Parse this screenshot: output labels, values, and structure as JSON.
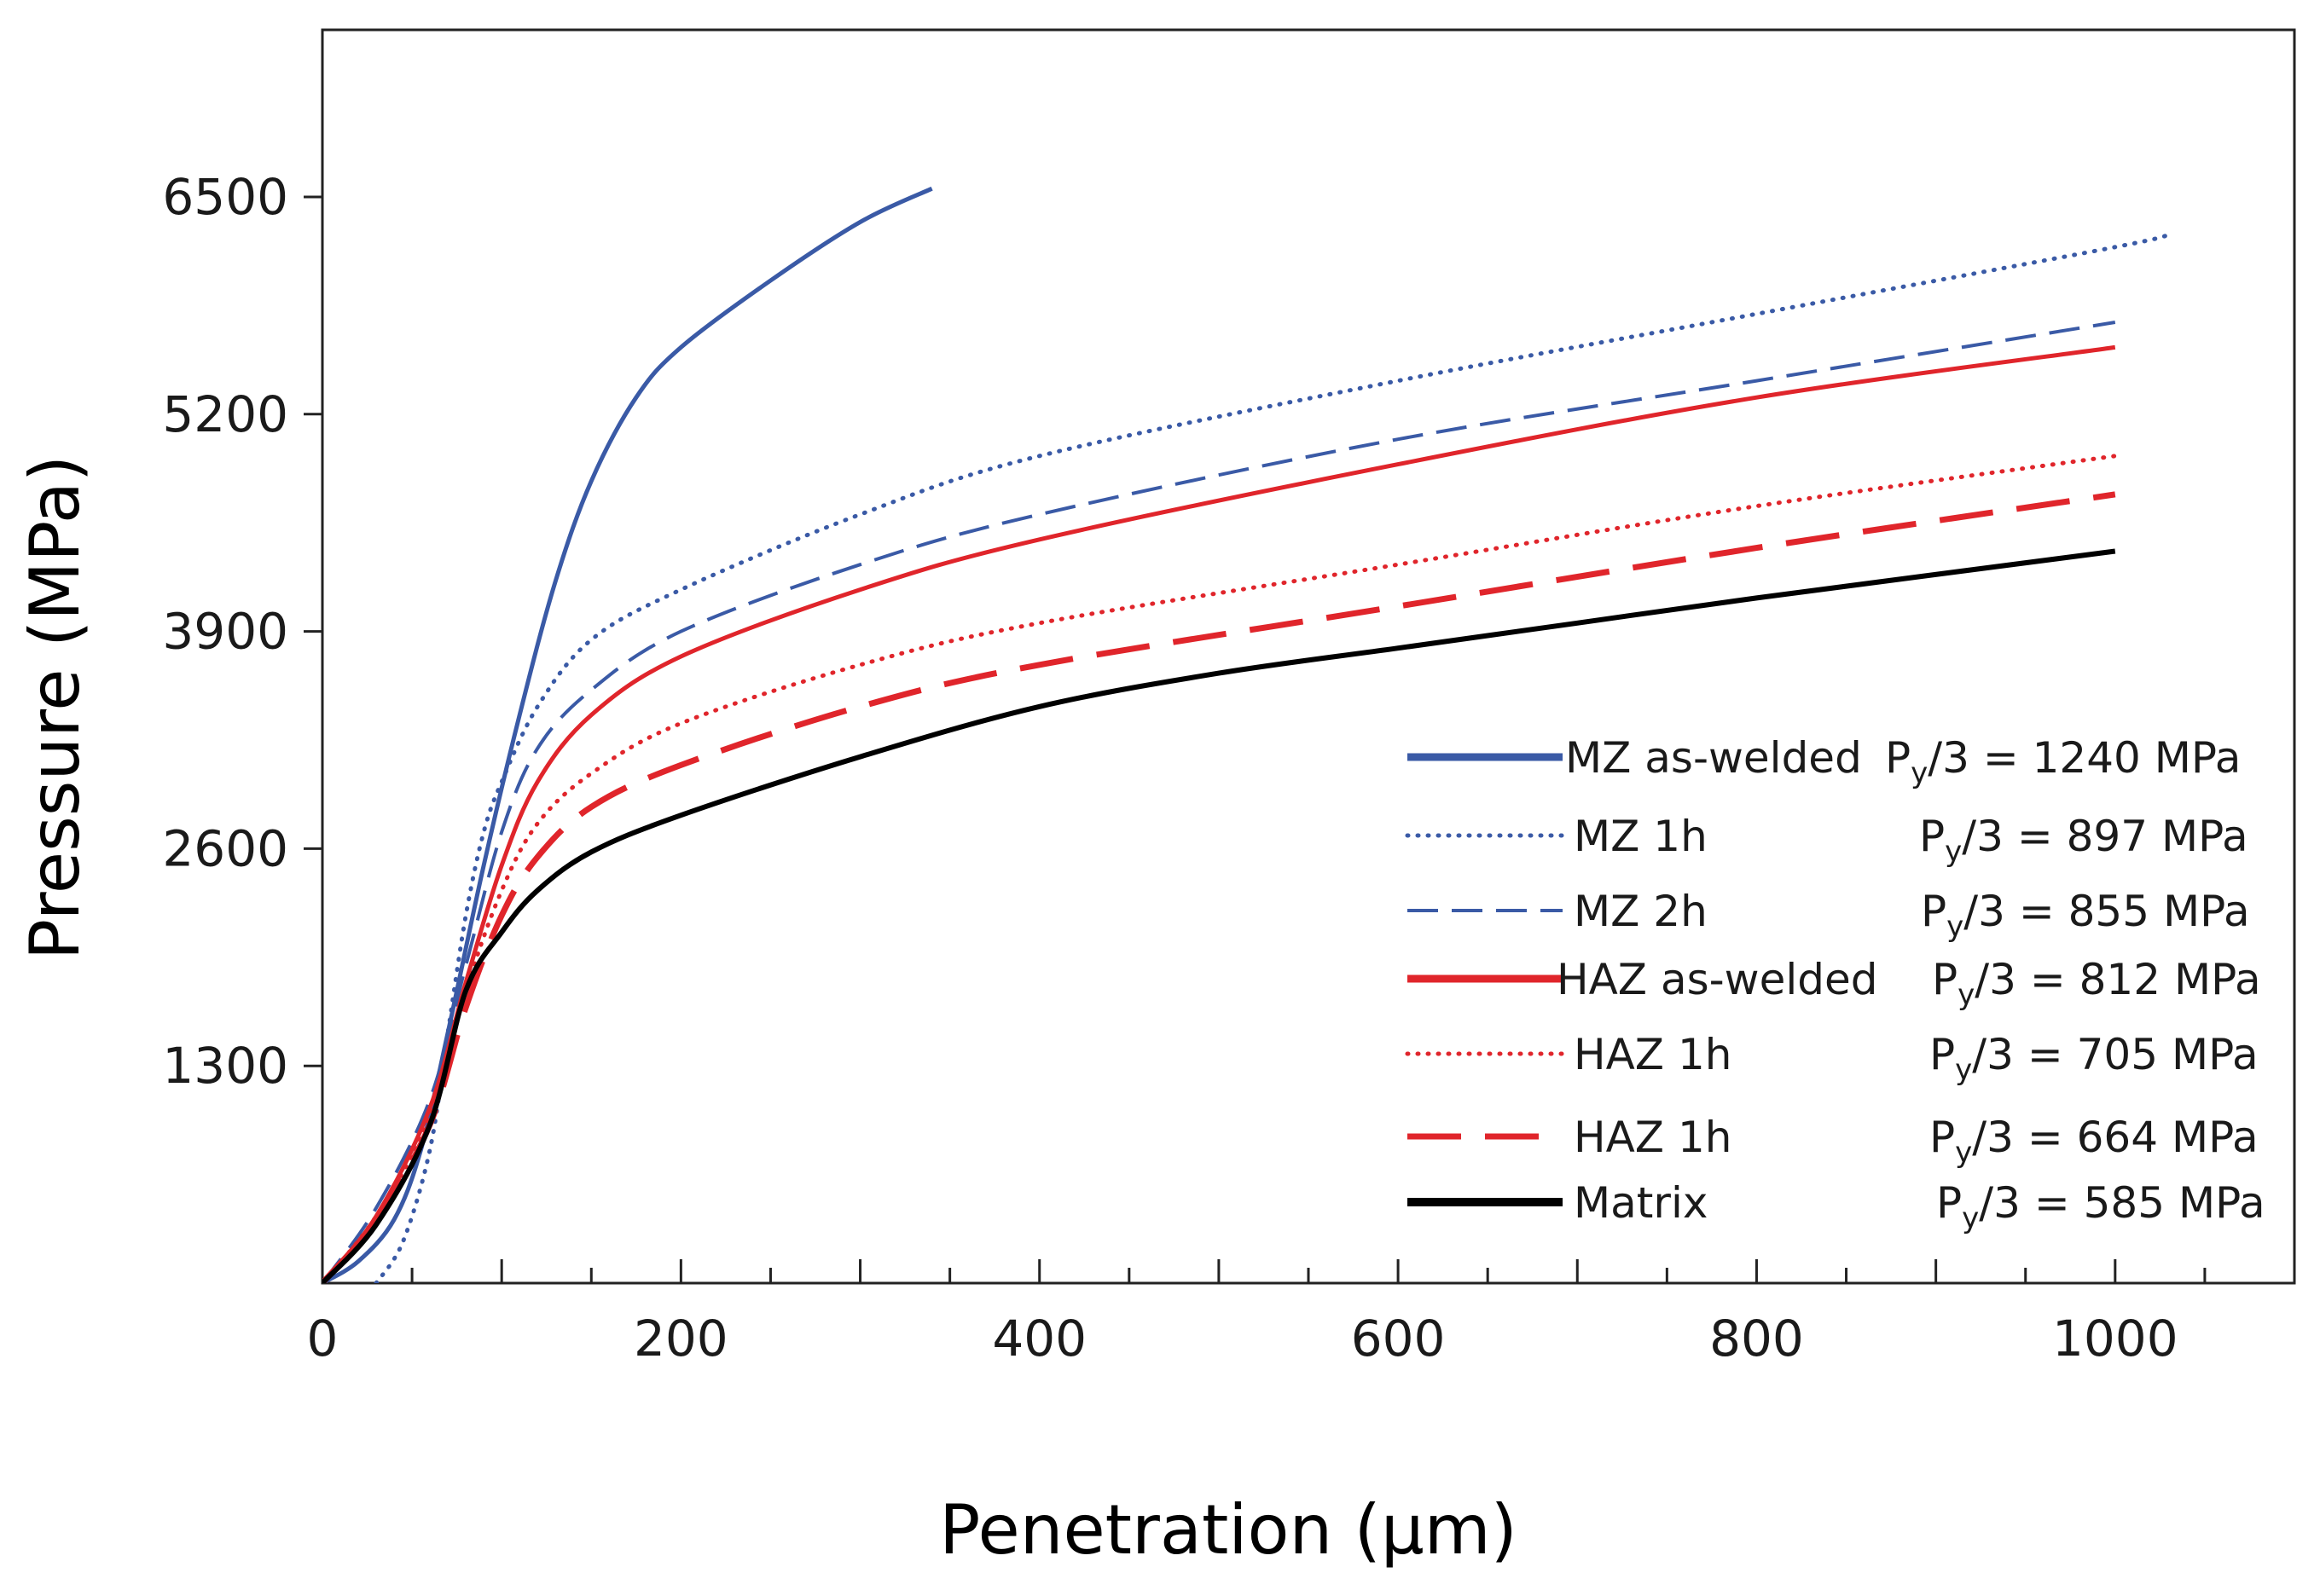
{
  "chart_data": {
    "type": "line",
    "title": "",
    "xlabel": "Penetration (µm)",
    "ylabel": "Pressure (MPa)",
    "xlim": [
      0,
      1100
    ],
    "ylim": [
      0,
      7500
    ],
    "xticks": [
      0,
      200,
      400,
      600,
      800,
      1000
    ],
    "yticks": [
      1300,
      2600,
      3900,
      5200,
      6500
    ],
    "grid": false,
    "legend_position": "bottom-right",
    "colors": {
      "blue": "#3a5aa6",
      "red": "#e0252b",
      "black": "#000000"
    },
    "series": [
      {
        "name": "MZ as-welded",
        "yield": "Py/3 = 1240 MPa",
        "py_sub": "y",
        "py_rest": "/3 = 1240 MPa",
        "color": "#3a5aa6",
        "style": "solid",
        "width": 5,
        "x": [
          0,
          20,
          40,
          55,
          70,
          90,
          110,
          130,
          150,
          175,
          200,
          250,
          300,
          340
        ],
        "y": [
          0,
          130,
          380,
          800,
          1500,
          2500,
          3400,
          4200,
          4800,
          5300,
          5600,
          6000,
          6350,
          6550
        ]
      },
      {
        "name": "MZ 1h",
        "yield": "Py/3 = 897 MPa",
        "py_sub": "y",
        "py_rest": "/3 = 897 MPa",
        "color": "#3a5aa6",
        "style": "dotted",
        "width": 5,
        "x": [
          30,
          45,
          60,
          70,
          80,
          90,
          100,
          120,
          150,
          200,
          300,
          400,
          600,
          800,
          1000,
          1030
        ],
        "y": [
          0,
          250,
          800,
          1500,
          2200,
          2700,
          3000,
          3450,
          3850,
          4150,
          4600,
          4950,
          5400,
          5800,
          6200,
          6280
        ]
      },
      {
        "name": "MZ 2h",
        "yield": "Py/3 = 855 MPa",
        "py_sub": "y",
        "py_rest": "/3 = 855 MPa",
        "color": "#3a5aa6",
        "style": "dashed",
        "width": 4,
        "x": [
          0,
          30,
          60,
          80,
          100,
          120,
          150,
          200,
          300,
          400,
          600,
          800,
          1000
        ],
        "y": [
          0,
          450,
          1100,
          1900,
          2700,
          3200,
          3550,
          3900,
          4300,
          4600,
          5050,
          5400,
          5750
        ]
      },
      {
        "name": "HAZ as-welded",
        "yield": "Py/3 = 812 MPa",
        "py_sub": "y",
        "py_rest": "/3 = 812 MPa",
        "color": "#e0252b",
        "style": "solid",
        "width": 5,
        "x": [
          0,
          30,
          60,
          80,
          100,
          120,
          150,
          200,
          300,
          400,
          600,
          800,
          1000
        ],
        "y": [
          0,
          400,
          1050,
          1800,
          2500,
          3000,
          3400,
          3750,
          4150,
          4450,
          4900,
          5300,
          5600
        ]
      },
      {
        "name": "HAZ 1h",
        "yield": "Py/3 = 705 MPa",
        "py_sub": "y",
        "py_rest": "/3 = 705 MPa",
        "color": "#e0252b",
        "style": "dotted",
        "width": 5,
        "x": [
          0,
          30,
          60,
          80,
          100,
          120,
          150,
          200,
          300,
          400,
          600,
          800,
          1000
        ],
        "y": [
          0,
          400,
          1000,
          1750,
          2350,
          2750,
          3050,
          3350,
          3700,
          3950,
          4300,
          4650,
          4950
        ]
      },
      {
        "name": "HAZ 1h",
        "yield": "Py/3 = 664 MPa",
        "py_sub": "y",
        "py_rest": "/3 = 664 MPa",
        "color": "#e0252b",
        "style": "dashed",
        "width": 7,
        "x": [
          0,
          30,
          60,
          80,
          100,
          120,
          150,
          200,
          300,
          400,
          600,
          800,
          1000
        ],
        "y": [
          0,
          380,
          950,
          1650,
          2200,
          2550,
          2850,
          3100,
          3450,
          3700,
          4050,
          4400,
          4720
        ]
      },
      {
        "name": "Matrix",
        "yield": "Py/3 = 585 MPa",
        "py_sub": "y",
        "py_rest": "/3 = 585 MPa",
        "color": "#000000",
        "style": "solid",
        "width": 6,
        "x": [
          0,
          30,
          60,
          80,
          100,
          120,
          150,
          200,
          300,
          400,
          500,
          600,
          700,
          800,
          1000
        ],
        "y": [
          0,
          350,
          950,
          1750,
          2100,
          2350,
          2580,
          2800,
          3150,
          3450,
          3650,
          3800,
          3950,
          4100,
          4380
        ]
      }
    ]
  }
}
